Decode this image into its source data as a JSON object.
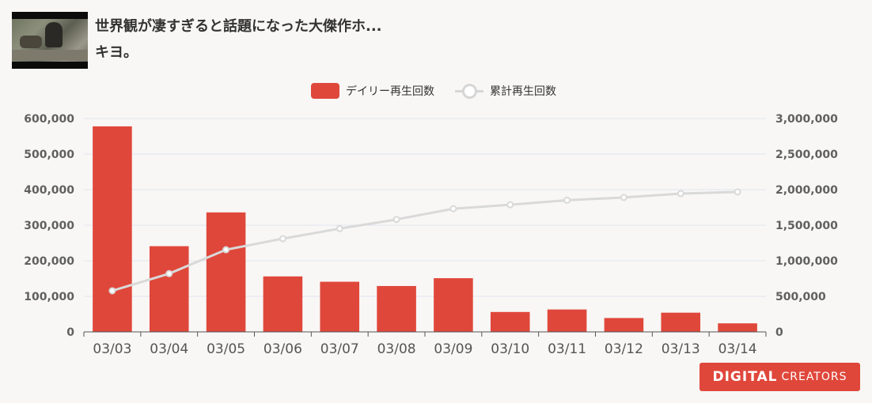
{
  "header": {
    "title_line1": "世界観が凄すぎると話題になった大傑作ホ...",
    "title_line2": "キヨ。",
    "thumbnail": "video-thumbnail"
  },
  "brand": {
    "part1": "DIGITAL",
    "part2": "CREATORS"
  },
  "colors": {
    "bar": "#e0473b",
    "line": "#d9d9d9",
    "grid": "#dfe4ee",
    "axis": "#555555",
    "brand": "#e0473b"
  },
  "chart_data": {
    "type": "bar",
    "categories": [
      "03/03",
      "03/04",
      "03/05",
      "03/06",
      "03/07",
      "03/08",
      "03/09",
      "03/10",
      "03/11",
      "03/12",
      "03/13",
      "03/14"
    ],
    "series": [
      {
        "name": "デイリー再生回数",
        "type": "bar",
        "axis": "left",
        "values": [
          578000,
          241000,
          336000,
          156000,
          141000,
          129000,
          151000,
          56000,
          63000,
          39000,
          54000,
          24000
        ]
      },
      {
        "name": "累計再生回数",
        "type": "line",
        "axis": "right",
        "values": [
          578000,
          819000,
          1155000,
          1311000,
          1452000,
          1581000,
          1732000,
          1788000,
          1851000,
          1890000,
          1944000,
          1968000
        ]
      }
    ],
    "y_left": {
      "range": [
        0,
        600000
      ],
      "ticks": [
        "0",
        "100,000",
        "200,000",
        "300,000",
        "400,000",
        "500,000",
        "600,000"
      ]
    },
    "y_right": {
      "range": [
        0,
        3000000
      ],
      "ticks": [
        "0",
        "500,000",
        "1,000,000",
        "1,500,000",
        "2,000,000",
        "2,500,000",
        "3,000,000"
      ]
    },
    "grid": true,
    "legend_position": "top-center"
  }
}
